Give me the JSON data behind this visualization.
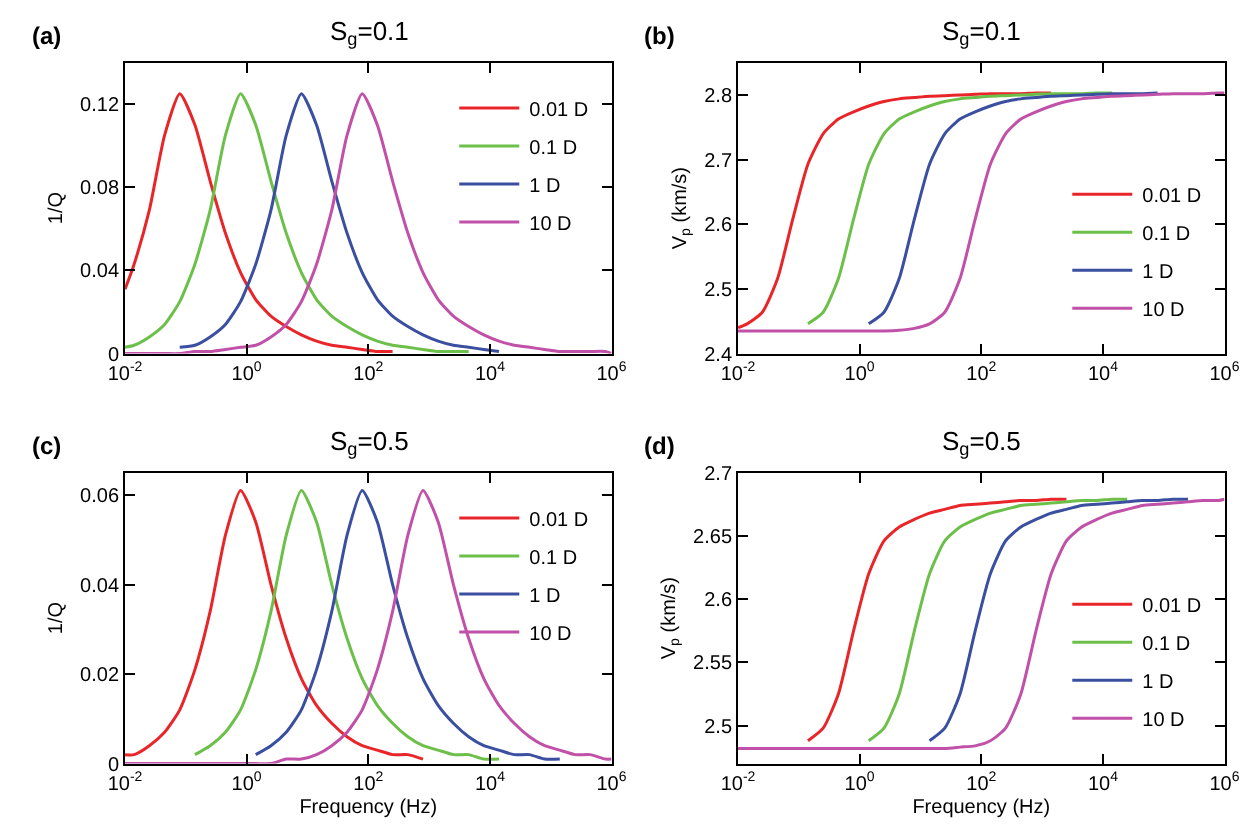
{
  "chart_data": [
    {
      "type": "line",
      "title": "S$_{g}$=0.1",
      "ylabel": "1/Q",
      "annotations": [
        "(a)"
      ],
      "log": "x",
      "legend": "top right",
      "grid": false,
      "x": [
        0.01,
        0.0141,
        0.0251,
        0.0447,
        0.0794,
        0.141,
        0.251,
        0.447,
        0.794,
        1.41,
        2.51,
        4.47,
        7.94,
        14.1,
        25.1,
        44.7,
        79.4,
        141,
        251,
        447,
        794,
        1410,
        2510,
        4470,
        7940,
        14100,
        25100,
        44700,
        79400,
        141000,
        251000,
        447000,
        794000,
        1000000
      ],
      "xlim": [
        0.01,
        1000000
      ],
      "xticks": [
        {
          "value": 0.01,
          "label": "10$^{-2}$"
        },
        {
          "value": 1,
          "label": "10$^{0}$"
        },
        {
          "value": 100,
          "label": "10$^{2}$"
        },
        {
          "value": 10000,
          "label": "10$^{4}$"
        },
        {
          "value": 1000000,
          "label": "10$^{6}$"
        }
      ],
      "ylim": [
        0,
        0.14
      ],
      "yticks": [
        0,
        0.04,
        0.08,
        0.12
      ],
      "series": [
        {
          "name": "0.01 D",
          "color": "#e8262a",
          "values": [
            0.031,
            0.043,
            0.069,
            0.105,
            0.125,
            0.11,
            0.083,
            0.058,
            0.039,
            0.026,
            0.018,
            0.013,
            0.009,
            0.006,
            0.004,
            0.003,
            0.002,
            0.001,
            0.001,
            null,
            null,
            null,
            null,
            null,
            null,
            null,
            null,
            null,
            null,
            null,
            null,
            null,
            null,
            null
          ]
        },
        {
          "name": "0.1 D",
          "color": "#6cc04a",
          "values": [
            0.003,
            0.004,
            0.008,
            0.014,
            0.025,
            0.043,
            0.069,
            0.105,
            0.125,
            0.11,
            0.083,
            0.058,
            0.039,
            0.026,
            0.018,
            0.013,
            0.009,
            0.006,
            0.004,
            0.003,
            0.002,
            0.001,
            0.001,
            0.001,
            null,
            null,
            null,
            null,
            null,
            null,
            null,
            null,
            null,
            null
          ]
        },
        {
          "name": "1 D",
          "color": "#3a4fa0",
          "values": [
            null,
            null,
            null,
            null,
            0.003,
            0.004,
            0.008,
            0.014,
            0.025,
            0.043,
            0.069,
            0.105,
            0.125,
            0.11,
            0.083,
            0.058,
            0.039,
            0.026,
            0.018,
            0.013,
            0.009,
            0.006,
            0.004,
            0.003,
            0.002,
            0.001,
            null,
            null,
            null,
            null,
            null,
            null,
            null,
            null
          ]
        },
        {
          "name": "10 D",
          "color": "#c050a8",
          "values": [
            0,
            0,
            0,
            0,
            0,
            0.001,
            0.001,
            0.002,
            0.003,
            0.004,
            0.008,
            0.014,
            0.025,
            0.043,
            0.069,
            0.105,
            0.125,
            0.11,
            0.083,
            0.058,
            0.039,
            0.026,
            0.018,
            0.013,
            0.009,
            0.006,
            0.004,
            0.003,
            0.002,
            0.001,
            0.001,
            0.001,
            0.001,
            0
          ]
        }
      ]
    },
    {
      "type": "line",
      "title": "S$_{g}$=0.1",
      "ylabel": "V$_{p}$ (km/s)",
      "annotations": [
        "(b)"
      ],
      "log": "x",
      "legend": "bottom right",
      "grid": false,
      "x": [
        0.01,
        0.0141,
        0.0251,
        0.0447,
        0.0794,
        0.141,
        0.251,
        0.447,
        0.794,
        1.41,
        2.51,
        4.47,
        7.94,
        14.1,
        25.1,
        44.7,
        79.4,
        141,
        251,
        447,
        794,
        1410,
        2510,
        4470,
        7940,
        14100,
        25100,
        44700,
        79400,
        141000,
        251000,
        447000,
        794000,
        1000000
      ],
      "xlim": [
        0.01,
        1000000
      ],
      "xticks": [
        {
          "value": 0.01,
          "label": "10$^{-2}$"
        },
        {
          "value": 1,
          "label": "10$^{0}$"
        },
        {
          "value": 100,
          "label": "10$^{2}$"
        },
        {
          "value": 10000,
          "label": "10$^{4}$"
        },
        {
          "value": 1000000,
          "label": "10$^{6}$"
        }
      ],
      "ylim": [
        2.4,
        2.85
      ],
      "yticks": [
        2.4,
        2.5,
        2.6,
        2.7,
        2.8
      ],
      "series": [
        {
          "name": "0.01 D",
          "color": "#e8262a",
          "values": [
            2.44,
            2.446,
            2.464,
            2.516,
            2.608,
            2.693,
            2.74,
            2.763,
            2.774,
            2.783,
            2.79,
            2.794,
            2.796,
            2.798,
            2.799,
            2.8,
            2.801,
            2.802,
            2.802,
            2.802,
            2.803,
            2.803,
            null,
            null,
            null,
            null,
            null,
            null,
            null,
            null,
            null,
            null,
            null,
            null
          ]
        },
        {
          "name": "0.1 D",
          "color": "#6cc04a",
          "values": [
            null,
            null,
            null,
            null,
            null,
            2.446,
            2.464,
            2.516,
            2.608,
            2.693,
            2.74,
            2.763,
            2.774,
            2.783,
            2.79,
            2.794,
            2.796,
            2.798,
            2.799,
            2.8,
            2.801,
            2.802,
            2.802,
            2.802,
            2.803,
            2.803,
            null,
            null,
            null,
            null,
            null,
            null,
            null,
            null
          ]
        },
        {
          "name": "1 D",
          "color": "#3a4fa0",
          "values": [
            null,
            null,
            null,
            null,
            null,
            null,
            null,
            null,
            null,
            2.446,
            2.464,
            2.516,
            2.608,
            2.693,
            2.74,
            2.763,
            2.774,
            2.783,
            2.79,
            2.794,
            2.796,
            2.798,
            2.799,
            2.8,
            2.801,
            2.802,
            2.802,
            2.802,
            2.803,
            null,
            null,
            null,
            null,
            null
          ]
        },
        {
          "name": "10 D",
          "color": "#c050a8",
          "values": [
            2.435,
            2.435,
            2.435,
            2.435,
            2.435,
            2.435,
            2.435,
            2.435,
            2.435,
            2.435,
            2.435,
            2.436,
            2.439,
            2.446,
            2.464,
            2.516,
            2.608,
            2.693,
            2.74,
            2.763,
            2.774,
            2.783,
            2.79,
            2.794,
            2.796,
            2.798,
            2.799,
            2.8,
            2.801,
            2.802,
            2.802,
            2.802,
            2.803,
            2.803
          ]
        }
      ]
    },
    {
      "type": "line",
      "title": "S$_{g}$=0.5",
      "xlabel": "Frequency (Hz)",
      "ylabel": "1/Q",
      "annotations": [
        "(c)"
      ],
      "log": "x",
      "legend": "top right",
      "grid": false,
      "x": [
        0.01,
        0.0141,
        0.0251,
        0.0447,
        0.0794,
        0.141,
        0.251,
        0.447,
        0.794,
        1.41,
        2.51,
        4.47,
        7.94,
        14.1,
        25.1,
        44.7,
        79.4,
        141,
        251,
        447,
        794,
        1410,
        2510,
        4470,
        7940,
        14100,
        25100,
        44700,
        79400,
        141000,
        251000,
        447000,
        794000,
        1000000
      ],
      "xlim": [
        0.01,
        1000000
      ],
      "xticks": [
        {
          "value": 0.01,
          "label": "10$^{-2}$"
        },
        {
          "value": 1,
          "label": "10$^{0}$"
        },
        {
          "value": 100,
          "label": "10$^{2}$"
        },
        {
          "value": 10000,
          "label": "10$^{4}$"
        },
        {
          "value": 1000000,
          "label": "10$^{6}$"
        }
      ],
      "ylim": [
        0,
        0.065
      ],
      "yticks": [
        0,
        0.02,
        0.04,
        0.06
      ],
      "series": [
        {
          "name": "0.01 D",
          "color": "#e8262a",
          "values": [
            0.002,
            0.002,
            0.004,
            0.007,
            0.012,
            0.021,
            0.034,
            0.051,
            0.061,
            0.054,
            0.04,
            0.028,
            0.019,
            0.013,
            0.009,
            0.006,
            0.004,
            0.003,
            0.002,
            0.002,
            0.001,
            null,
            null,
            null,
            null,
            null,
            null,
            null,
            null,
            null,
            null,
            null,
            null,
            null
          ]
        },
        {
          "name": "0.1 D",
          "color": "#6cc04a",
          "values": [
            null,
            null,
            null,
            null,
            null,
            0.002,
            0.004,
            0.007,
            0.012,
            0.021,
            0.034,
            0.051,
            0.061,
            0.054,
            0.04,
            0.028,
            0.019,
            0.013,
            0.009,
            0.006,
            0.004,
            0.003,
            0.002,
            0.002,
            0.001,
            0.001,
            null,
            null,
            null,
            null,
            null,
            null,
            null,
            null
          ]
        },
        {
          "name": "1 D",
          "color": "#3a4fa0",
          "values": [
            null,
            null,
            null,
            null,
            null,
            null,
            null,
            null,
            null,
            0.002,
            0.004,
            0.007,
            0.012,
            0.021,
            0.034,
            0.051,
            0.061,
            0.054,
            0.04,
            0.028,
            0.019,
            0.013,
            0.009,
            0.006,
            0.004,
            0.003,
            0.002,
            0.002,
            0.001,
            0.001,
            null,
            null,
            null,
            null
          ]
        },
        {
          "name": "10 D",
          "color": "#c050a8",
          "values": [
            0,
            0,
            0,
            0,
            0,
            0,
            0,
            0,
            0,
            0,
            0,
            0.001,
            0.001,
            0.002,
            0.004,
            0.007,
            0.012,
            0.021,
            0.034,
            0.051,
            0.061,
            0.054,
            0.04,
            0.028,
            0.019,
            0.013,
            0.009,
            0.006,
            0.004,
            0.003,
            0.002,
            0.002,
            0.001,
            0.001
          ]
        }
      ]
    },
    {
      "type": "line",
      "title": "S$_{g}$=0.5",
      "xlabel": "Frequency (Hz)",
      "ylabel": "V$_{p}$ (km/s)",
      "annotations": [
        "(d)"
      ],
      "log": "x",
      "legend": "bottom right",
      "grid": false,
      "x": [
        0.01,
        0.0141,
        0.0251,
        0.0447,
        0.0794,
        0.141,
        0.251,
        0.447,
        0.794,
        1.41,
        2.51,
        4.47,
        7.94,
        14.1,
        25.1,
        44.7,
        79.4,
        141,
        251,
        447,
        794,
        1410,
        2510,
        4470,
        7940,
        14100,
        25100,
        44700,
        79400,
        141000,
        251000,
        447000,
        794000,
        1000000
      ],
      "xlim": [
        0.01,
        1000000
      ],
      "xticks": [
        {
          "value": 0.01,
          "label": "10$^{-2}$"
        },
        {
          "value": 1,
          "label": "10$^{0}$"
        },
        {
          "value": 100,
          "label": "10$^{2}$"
        },
        {
          "value": 10000,
          "label": "10$^{4}$"
        },
        {
          "value": 1000000,
          "label": "10$^{6}$"
        }
      ],
      "ylim": [
        2.47,
        2.7
      ],
      "yticks": [
        2.5,
        2.55,
        2.6,
        2.65,
        2.7
      ],
      "series": [
        {
          "name": "0.01 D",
          "color": "#e8262a",
          "values": [
            null,
            null,
            null,
            null,
            null,
            2.488,
            2.498,
            2.525,
            2.575,
            2.62,
            2.646,
            2.657,
            2.663,
            2.668,
            2.671,
            2.674,
            2.675,
            2.676,
            2.677,
            2.678,
            2.678,
            2.679,
            2.679,
            null,
            null,
            null,
            null,
            null,
            null,
            null,
            null,
            null,
            null,
            null
          ]
        },
        {
          "name": "0.1 D",
          "color": "#6cc04a",
          "values": [
            null,
            null,
            null,
            null,
            null,
            null,
            null,
            null,
            null,
            2.488,
            2.498,
            2.525,
            2.575,
            2.62,
            2.646,
            2.657,
            2.663,
            2.668,
            2.671,
            2.674,
            2.675,
            2.676,
            2.677,
            2.678,
            2.678,
            2.679,
            2.679,
            null,
            null,
            null,
            null,
            null,
            null,
            null
          ]
        },
        {
          "name": "1 D",
          "color": "#3a4fa0",
          "values": [
            null,
            null,
            null,
            null,
            null,
            null,
            null,
            null,
            null,
            null,
            null,
            null,
            null,
            2.488,
            2.498,
            2.525,
            2.575,
            2.62,
            2.646,
            2.657,
            2.663,
            2.668,
            2.671,
            2.674,
            2.675,
            2.676,
            2.677,
            2.678,
            2.678,
            2.679,
            2.679,
            null,
            null,
            null
          ]
        },
        {
          "name": "10 D",
          "color": "#c050a8",
          "values": [
            2.482,
            2.482,
            2.482,
            2.482,
            2.482,
            2.482,
            2.482,
            2.482,
            2.482,
            2.482,
            2.482,
            2.482,
            2.482,
            2.482,
            2.482,
            2.483,
            2.484,
            2.488,
            2.498,
            2.525,
            2.575,
            2.62,
            2.646,
            2.657,
            2.663,
            2.668,
            2.671,
            2.674,
            2.675,
            2.676,
            2.677,
            2.678,
            2.678,
            2.679
          ]
        }
      ]
    }
  ]
}
